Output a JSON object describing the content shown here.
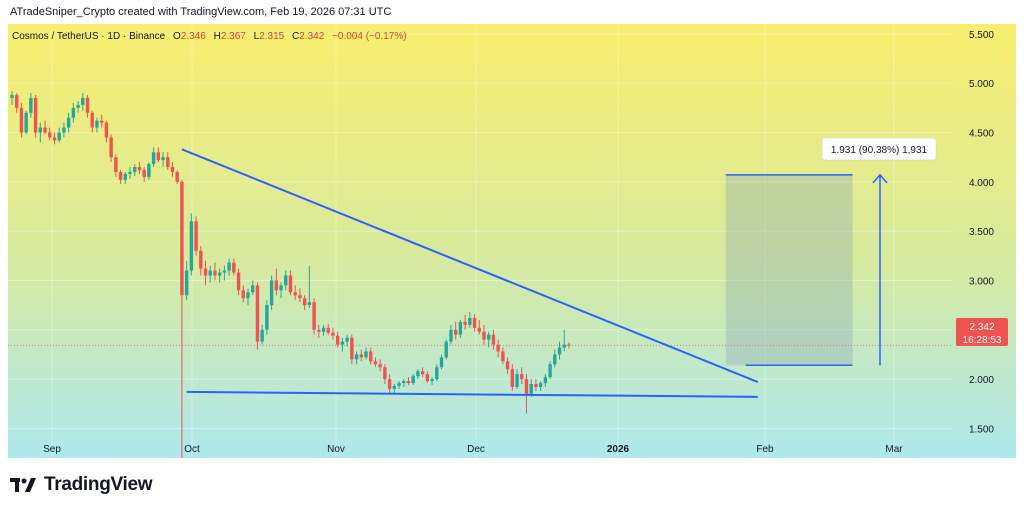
{
  "header": {
    "watermark": "ATradeSniper_Crypto created with TradingView.com, Feb 19, 2026 07:31 UTC"
  },
  "legend": {
    "symbol": "Cosmos / TetherUS · 1D · Binance",
    "open_label": "O",
    "open": "2.346",
    "high_label": "H",
    "high": "2.367",
    "low_label": "L",
    "low": "2.315",
    "close_label": "C",
    "close": "2.342",
    "change": "−0.004 (−0.17%)"
  },
  "price_tag": {
    "price": "2.342",
    "countdown": "16:28:53"
  },
  "measure_label": "1.931 (90.38%) 1,931",
  "footer": {
    "brand": "TradingView"
  },
  "colors": {
    "up": "#26a69a",
    "down": "#ef5350",
    "trend": "#2962ff",
    "bg_top": "#f8ee6e",
    "bg_bottom": "#aee8ee"
  },
  "chart_data": {
    "type": "candlestick",
    "y_ticks": [
      "5.500",
      "5.000",
      "4.500",
      "4.000",
      "3.500",
      "3.000",
      "2.500",
      "2.000",
      "1.500"
    ],
    "x_ticks": [
      "Sep",
      "Oct",
      "Nov",
      "Dec",
      "2026",
      "Feb",
      "Mar"
    ],
    "ylim": [
      1.2,
      5.6
    ],
    "candles": [
      [
        4.85,
        4.92,
        4.78,
        4.88
      ],
      [
        4.88,
        4.9,
        4.7,
        4.75
      ],
      [
        4.75,
        4.8,
        4.45,
        4.5
      ],
      [
        4.5,
        4.72,
        4.48,
        4.7
      ],
      [
        4.7,
        4.9,
        4.65,
        4.85
      ],
      [
        4.85,
        4.88,
        4.45,
        4.5
      ],
      [
        4.5,
        4.6,
        4.4,
        4.55
      ],
      [
        4.55,
        4.62,
        4.48,
        4.5
      ],
      [
        4.5,
        4.55,
        4.42,
        4.45
      ],
      [
        4.45,
        4.5,
        4.38,
        4.42
      ],
      [
        4.42,
        4.55,
        4.4,
        4.5
      ],
      [
        4.5,
        4.6,
        4.45,
        4.55
      ],
      [
        4.55,
        4.7,
        4.5,
        4.65
      ],
      [
        4.65,
        4.8,
        4.6,
        4.75
      ],
      [
        4.75,
        4.82,
        4.7,
        4.78
      ],
      [
        4.78,
        4.9,
        4.72,
        4.85
      ],
      [
        4.85,
        4.88,
        4.65,
        4.7
      ],
      [
        4.7,
        4.72,
        4.5,
        4.55
      ],
      [
        4.55,
        4.65,
        4.5,
        4.62
      ],
      [
        4.62,
        4.68,
        4.55,
        4.6
      ],
      [
        4.6,
        4.62,
        4.4,
        4.45
      ],
      [
        4.45,
        4.48,
        4.2,
        4.25
      ],
      [
        4.25,
        4.28,
        4.05,
        4.1
      ],
      [
        4.1,
        4.12,
        3.98,
        4.02
      ],
      [
        4.02,
        4.1,
        3.98,
        4.08
      ],
      [
        4.08,
        4.15,
        4.03,
        4.1
      ],
      [
        4.1,
        4.18,
        4.06,
        4.15
      ],
      [
        4.15,
        4.2,
        4.08,
        4.12
      ],
      [
        4.12,
        4.15,
        4.0,
        4.05
      ],
      [
        4.05,
        4.2,
        4.02,
        4.18
      ],
      [
        4.18,
        4.35,
        4.15,
        4.3
      ],
      [
        4.3,
        4.35,
        4.2,
        4.22
      ],
      [
        4.22,
        4.3,
        4.15,
        4.25
      ],
      [
        4.25,
        4.3,
        4.12,
        4.15
      ],
      [
        4.15,
        4.2,
        4.05,
        4.1
      ],
      [
        4.1,
        4.12,
        3.98,
        4.0
      ],
      [
        4.0,
        4.02,
        1.2,
        2.85
      ],
      [
        2.85,
        3.2,
        2.8,
        3.1
      ],
      [
        3.1,
        3.68,
        3.05,
        3.6
      ],
      [
        3.6,
        3.65,
        3.25,
        3.3
      ],
      [
        3.3,
        3.35,
        3.05,
        3.12
      ],
      [
        3.12,
        3.2,
        2.95,
        3.05
      ],
      [
        3.05,
        3.15,
        2.98,
        3.1
      ],
      [
        3.1,
        3.18,
        3.0,
        3.05
      ],
      [
        3.05,
        3.12,
        2.98,
        3.08
      ],
      [
        3.08,
        3.15,
        3.0,
        3.1
      ],
      [
        3.1,
        3.22,
        3.05,
        3.18
      ],
      [
        3.18,
        3.22,
        3.05,
        3.08
      ],
      [
        3.08,
        3.12,
        2.85,
        2.9
      ],
      [
        2.9,
        2.95,
        2.78,
        2.82
      ],
      [
        2.82,
        2.92,
        2.75,
        2.88
      ],
      [
        2.88,
        3.0,
        2.85,
        2.95
      ],
      [
        2.95,
        2.98,
        2.3,
        2.38
      ],
      [
        2.38,
        2.55,
        2.35,
        2.5
      ],
      [
        2.5,
        2.8,
        2.45,
        2.75
      ],
      [
        2.75,
        3.05,
        2.7,
        3.0
      ],
      [
        3.0,
        3.12,
        2.85,
        2.9
      ],
      [
        2.9,
        2.98,
        2.82,
        2.95
      ],
      [
        2.95,
        3.1,
        2.9,
        3.05
      ],
      [
        3.05,
        3.1,
        2.85,
        2.88
      ],
      [
        2.88,
        2.95,
        2.8,
        2.85
      ],
      [
        2.85,
        2.92,
        2.78,
        2.82
      ],
      [
        2.82,
        2.85,
        2.7,
        2.75
      ],
      [
        2.75,
        3.15,
        2.72,
        2.78
      ],
      [
        2.78,
        2.82,
        2.45,
        2.5
      ],
      [
        2.5,
        2.55,
        2.42,
        2.48
      ],
      [
        2.48,
        2.55,
        2.44,
        2.52
      ],
      [
        2.52,
        2.56,
        2.45,
        2.47
      ],
      [
        2.47,
        2.52,
        2.4,
        2.44
      ],
      [
        2.44,
        2.48,
        2.32,
        2.35
      ],
      [
        2.35,
        2.42,
        2.28,
        2.38
      ],
      [
        2.38,
        2.45,
        2.33,
        2.42
      ],
      [
        2.42,
        2.45,
        2.15,
        2.2
      ],
      [
        2.2,
        2.28,
        2.15,
        2.25
      ],
      [
        2.25,
        2.3,
        2.18,
        2.22
      ],
      [
        2.22,
        2.32,
        2.2,
        2.28
      ],
      [
        2.28,
        2.32,
        2.15,
        2.18
      ],
      [
        2.18,
        2.22,
        2.12,
        2.15
      ],
      [
        2.15,
        2.2,
        2.08,
        2.12
      ],
      [
        2.12,
        2.15,
        1.95,
        2.0
      ],
      [
        2.0,
        2.05,
        1.86,
        1.9
      ],
      [
        1.9,
        1.95,
        1.86,
        1.93
      ],
      [
        1.93,
        1.98,
        1.9,
        1.96
      ],
      [
        1.96,
        2.0,
        1.92,
        1.98
      ],
      [
        1.98,
        2.02,
        1.94,
        1.96
      ],
      [
        1.96,
        2.05,
        1.94,
        2.03
      ],
      [
        2.03,
        2.1,
        2.0,
        2.08
      ],
      [
        2.08,
        2.12,
        2.02,
        2.05
      ],
      [
        2.05,
        2.08,
        1.96,
        1.98
      ],
      [
        1.98,
        2.02,
        1.94,
        2.0
      ],
      [
        2.0,
        2.15,
        1.98,
        2.12
      ],
      [
        2.12,
        2.25,
        2.1,
        2.22
      ],
      [
        2.22,
        2.4,
        2.2,
        2.38
      ],
      [
        2.38,
        2.55,
        2.35,
        2.5
      ],
      [
        2.5,
        2.58,
        2.4,
        2.45
      ],
      [
        2.45,
        2.6,
        2.42,
        2.58
      ],
      [
        2.58,
        2.65,
        2.5,
        2.55
      ],
      [
        2.55,
        2.68,
        2.52,
        2.62
      ],
      [
        2.62,
        2.66,
        2.48,
        2.52
      ],
      [
        2.52,
        2.6,
        2.45,
        2.48
      ],
      [
        2.48,
        2.55,
        2.35,
        2.4
      ],
      [
        2.4,
        2.48,
        2.32,
        2.45
      ],
      [
        2.45,
        2.5,
        2.3,
        2.35
      ],
      [
        2.35,
        2.4,
        2.22,
        2.28
      ],
      [
        2.28,
        2.32,
        2.15,
        2.18
      ],
      [
        2.18,
        2.22,
        2.05,
        2.1
      ],
      [
        2.1,
        2.15,
        1.88,
        1.92
      ],
      [
        1.92,
        2.1,
        1.9,
        2.05
      ],
      [
        2.05,
        2.12,
        1.95,
        2.0
      ],
      [
        2.0,
        2.05,
        1.65,
        1.85
      ],
      [
        1.85,
        2.0,
        1.82,
        1.95
      ],
      [
        1.95,
        2.0,
        1.88,
        1.92
      ],
      [
        1.92,
        1.98,
        1.88,
        1.96
      ],
      [
        1.96,
        2.05,
        1.92,
        2.02
      ],
      [
        2.02,
        2.18,
        2.0,
        2.15
      ],
      [
        2.15,
        2.3,
        2.12,
        2.25
      ],
      [
        2.25,
        2.38,
        2.2,
        2.32
      ],
      [
        2.32,
        2.5,
        2.28,
        2.35
      ],
      [
        2.35,
        2.37,
        2.31,
        2.34
      ]
    ],
    "trendlines": [
      {
        "from": [
          36,
          4.33
        ],
        "to": [
          158,
          1.97
        ]
      },
      {
        "from": [
          37,
          1.87
        ],
        "to": [
          158,
          1.82
        ]
      }
    ],
    "current_price": 2.342,
    "measure": {
      "from_index": 151,
      "to_index": 173,
      "low": 2.14,
      "high": 4.07
    }
  }
}
